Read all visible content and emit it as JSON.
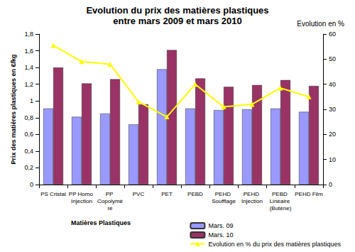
{
  "chart_data": {
    "type": "bar",
    "title": "Evolution du prix des matières plastiques",
    "subtitle": "entre mars 2009 et mars 2010",
    "x_label": "Matières Plastiques",
    "y_label": "Prix des matières plastiques en €/kg",
    "y2_label": "Evolution en %",
    "categories": [
      "PS Cristal",
      "PP Homo Injection",
      "PP Copolymère",
      "PVC",
      "PET",
      "PEBD",
      "PEHD Soufflage",
      "PEHD Injection",
      "PEBD Linéaire (Butène)",
      "PEHD Film"
    ],
    "series": [
      {
        "name": "Mars. 09",
        "color": "#9999ff",
        "values": [
          0.91,
          0.81,
          0.85,
          0.72,
          1.38,
          0.91,
          0.89,
          0.9,
          0.91,
          0.87
        ]
      },
      {
        "name": "Mars. 10",
        "color": "#993366",
        "values": [
          1.4,
          1.21,
          1.26,
          0.96,
          1.61,
          1.27,
          1.17,
          1.19,
          1.25,
          1.18
        ]
      },
      {
        "name": "Evolution en % du prix des matières plastiques",
        "type": "line",
        "axis": "y2",
        "color": "#ffff00",
        "marker": "triangle",
        "values": [
          55.5,
          49,
          48,
          33,
          27,
          40,
          31,
          32,
          38.5,
          35
        ]
      }
    ],
    "ylim": [
      0,
      1.8
    ],
    "yticks": [
      0,
      {
        "value": 0.2,
        "label": "0,2"
      },
      {
        "value": 0.4,
        "label": "0,4"
      },
      {
        "value": 0.6,
        "label": "0,6"
      },
      {
        "value": 0.8,
        "label": "0,8"
      },
      1,
      {
        "value": 1.2,
        "label": "1,2"
      },
      {
        "value": 1.4,
        "label": "1,4"
      },
      {
        "value": 1.6,
        "label": "1,6"
      },
      {
        "value": 1.8,
        "label": "1,8"
      }
    ],
    "y2lim": [
      0,
      60
    ],
    "y2ticks": [
      0,
      10,
      20,
      30,
      40,
      50,
      60
    ],
    "grid": false,
    "legend": "bottom-right"
  }
}
